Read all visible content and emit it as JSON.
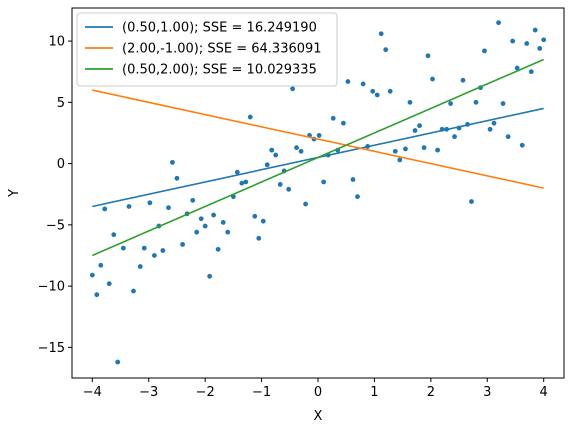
{
  "chart_data": {
    "type": "scatter",
    "title": "",
    "xlabel": "X",
    "ylabel": "Y",
    "xlim": [
      -4.36,
      4.36
    ],
    "ylim": [
      -17.5,
      12.7
    ],
    "xticks": [
      -4,
      -3,
      -2,
      -1,
      0,
      1,
      2,
      3,
      4
    ],
    "yticks": [
      -15,
      -10,
      -5,
      0,
      5,
      10
    ],
    "grid": false,
    "legend_position": "upper-left",
    "scatter": {
      "color": "#1f77b4",
      "points": [
        [
          -4.0,
          -9.1
        ],
        [
          -3.92,
          -10.7
        ],
        [
          -3.85,
          -8.3
        ],
        [
          -3.78,
          -3.7
        ],
        [
          -3.7,
          -9.8
        ],
        [
          -3.62,
          -5.8
        ],
        [
          -3.55,
          -16.2
        ],
        [
          -3.45,
          -6.9
        ],
        [
          -3.35,
          -3.5
        ],
        [
          -3.27,
          -10.4
        ],
        [
          -3.15,
          -8.4
        ],
        [
          -3.08,
          -6.9
        ],
        [
          -2.98,
          -3.2
        ],
        [
          -2.9,
          -7.5
        ],
        [
          -2.82,
          -5.1
        ],
        [
          -2.75,
          -7.1
        ],
        [
          -2.65,
          -3.6
        ],
        [
          -2.58,
          0.1
        ],
        [
          -2.5,
          -1.2
        ],
        [
          -2.4,
          -6.6
        ],
        [
          -2.32,
          -4.1
        ],
        [
          -2.22,
          -3.0
        ],
        [
          -2.15,
          -5.6
        ],
        [
          -2.07,
          -4.5
        ],
        [
          -2.0,
          -5.1
        ],
        [
          -1.92,
          -9.2
        ],
        [
          -1.85,
          -4.2
        ],
        [
          -1.77,
          -7.0
        ],
        [
          -1.68,
          -4.8
        ],
        [
          -1.6,
          -5.6
        ],
        [
          -1.5,
          -2.7
        ],
        [
          -1.43,
          -0.7
        ],
        [
          -1.35,
          -1.6
        ],
        [
          -1.28,
          -1.5
        ],
        [
          -1.2,
          3.8
        ],
        [
          -1.12,
          -4.3
        ],
        [
          -1.05,
          -6.1
        ],
        [
          -0.97,
          -4.7
        ],
        [
          -0.9,
          -0.1
        ],
        [
          -0.82,
          1.1
        ],
        [
          -0.75,
          0.7
        ],
        [
          -0.67,
          -1.7
        ],
        [
          -0.6,
          -0.6
        ],
        [
          -0.52,
          -2.1
        ],
        [
          -0.45,
          6.1
        ],
        [
          -0.38,
          1.3
        ],
        [
          -0.3,
          1.0
        ],
        [
          -0.22,
          -3.3
        ],
        [
          -0.15,
          2.3
        ],
        [
          -0.07,
          2.0
        ],
        [
          0.02,
          2.3
        ],
        [
          0.1,
          -1.5
        ],
        [
          0.18,
          0.7
        ],
        [
          0.27,
          3.7
        ],
        [
          0.35,
          1.1
        ],
        [
          0.45,
          3.3
        ],
        [
          0.53,
          6.7
        ],
        [
          0.62,
          -1.3
        ],
        [
          0.7,
          -2.7
        ],
        [
          0.8,
          6.5
        ],
        [
          0.88,
          1.4
        ],
        [
          0.97,
          5.9
        ],
        [
          1.05,
          5.6
        ],
        [
          1.12,
          10.6
        ],
        [
          1.2,
          9.3
        ],
        [
          1.28,
          5.9
        ],
        [
          1.37,
          1.0
        ],
        [
          1.45,
          0.3
        ],
        [
          1.55,
          1.2
        ],
        [
          1.63,
          5.0
        ],
        [
          1.72,
          2.7
        ],
        [
          1.8,
          3.1
        ],
        [
          1.88,
          1.3
        ],
        [
          1.95,
          8.8
        ],
        [
          2.03,
          6.9
        ],
        [
          2.12,
          1.1
        ],
        [
          2.2,
          2.8
        ],
        [
          2.28,
          2.8
        ],
        [
          2.35,
          4.9
        ],
        [
          2.42,
          2.2
        ],
        [
          2.5,
          2.9
        ],
        [
          2.57,
          6.8
        ],
        [
          2.65,
          3.2
        ],
        [
          2.72,
          -3.1
        ],
        [
          2.8,
          5.0
        ],
        [
          2.88,
          6.2
        ],
        [
          2.95,
          9.2
        ],
        [
          3.05,
          2.8
        ],
        [
          3.12,
          3.3
        ],
        [
          3.2,
          11.5
        ],
        [
          3.28,
          4.9
        ],
        [
          3.37,
          2.2
        ],
        [
          3.45,
          10.0
        ],
        [
          3.53,
          7.8
        ],
        [
          3.62,
          1.5
        ],
        [
          3.7,
          9.8
        ],
        [
          3.78,
          7.5
        ],
        [
          3.85,
          10.9
        ],
        [
          3.93,
          9.4
        ],
        [
          4.0,
          10.1
        ]
      ]
    },
    "series": [
      {
        "name": "(0.50,1.00); SSE = 16.249190",
        "color": "#1f77b4",
        "x": [
          -4,
          4
        ],
        "y": [
          -3.5,
          4.5
        ]
      },
      {
        "name": "(2.00,-1.00); SSE = 64.336091",
        "color": "#ff7f0e",
        "x": [
          -4,
          4
        ],
        "y": [
          6.0,
          -2.0
        ]
      },
      {
        "name": "(0.50,2.00); SSE = 10.029335",
        "color": "#2ca02c",
        "x": [
          -4,
          4
        ],
        "y": [
          -7.5,
          8.5
        ]
      }
    ]
  }
}
